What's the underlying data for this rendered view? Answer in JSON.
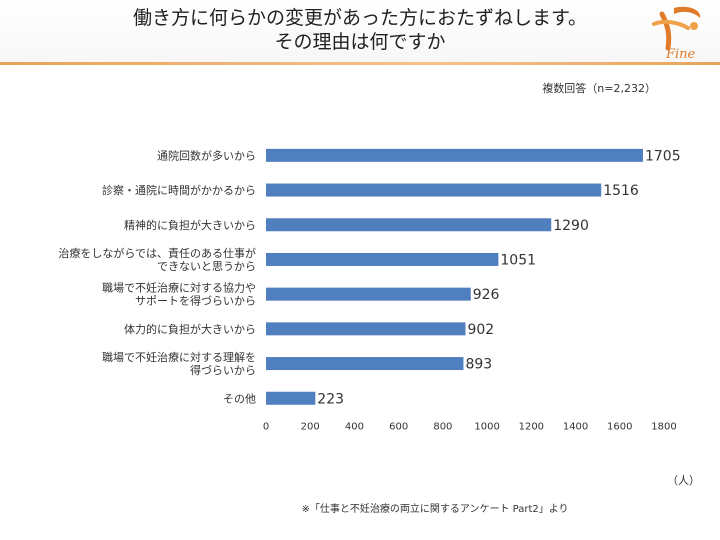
{
  "header": {
    "title_line1": "働き方に何らかの変更があった方におたずねします。",
    "title_line2": "その理由は何ですか",
    "logo_text": "Fine"
  },
  "note": "複数回答（n=2,232）",
  "unit_label": "（人）",
  "source": "※「仕事と不妊治療の両立に関するアンケート Part2」より",
  "colors": {
    "bar": "#4f7fbf",
    "header_rule": "#e9a35b",
    "logo": "#e07b2a"
  },
  "chart_data": {
    "type": "bar",
    "orientation": "horizontal",
    "categories": [
      [
        "通院回数が多いから"
      ],
      [
        "診察・通院に時間がかかるから"
      ],
      [
        "精神的に負担が大きいから"
      ],
      [
        "治療をしながらでは、責任のある仕事が",
        "できないと思うから"
      ],
      [
        "職場で不妊治療に対する協力や",
        "サポートを得づらいから"
      ],
      [
        "体力的に負担が大きいから"
      ],
      [
        "職場で不妊治療に対する理解を",
        "得づらいから"
      ],
      [
        "その他"
      ]
    ],
    "values": [
      1705,
      1516,
      1290,
      1051,
      926,
      902,
      893,
      223
    ],
    "xlim": [
      0,
      1800
    ],
    "xticks": [
      0,
      200,
      400,
      600,
      800,
      1000,
      1200,
      1400,
      1600,
      1800
    ],
    "grid": false
  }
}
